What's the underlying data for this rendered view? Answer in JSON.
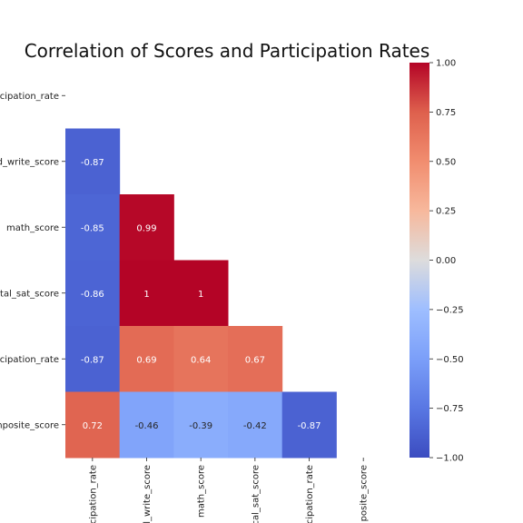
{
  "chart_data": {
    "type": "heatmap",
    "title": "Correlation of Scores and Participation Rates",
    "mask": "upper-triangle",
    "row_labels": [
      "cipation_rate",
      "d_write_score",
      "math_score",
      "tal_sat_score",
      "cipation_rate",
      "omposite_score"
    ],
    "col_labels": [
      "cipation_rate",
      "l_write_score",
      "math_score",
      "cal_sat_score",
      "cipation_rate",
      "posite_score"
    ],
    "values": [
      [
        null,
        null,
        null,
        null,
        null,
        null
      ],
      [
        -0.87,
        null,
        null,
        null,
        null,
        null
      ],
      [
        -0.85,
        0.99,
        null,
        null,
        null,
        null
      ],
      [
        -0.86,
        1,
        1,
        null,
        null,
        null
      ],
      [
        -0.87,
        0.69,
        0.64,
        0.67,
        null,
        null
      ],
      [
        0.72,
        -0.46,
        -0.39,
        -0.42,
        -0.87,
        null
      ]
    ],
    "value_labels": [
      [
        null,
        null,
        null,
        null,
        null,
        null
      ],
      [
        "-0.87",
        null,
        null,
        null,
        null,
        null
      ],
      [
        "-0.85",
        "0.99",
        null,
        null,
        null,
        null
      ],
      [
        "-0.86",
        "1",
        "1",
        null,
        null,
        null
      ],
      [
        "-0.87",
        "0.69",
        "0.64",
        "0.67",
        null,
        null
      ],
      [
        "0.72",
        "-0.46",
        "-0.39",
        "-0.42",
        "-0.87",
        null
      ]
    ],
    "colormap": "coolwarm",
    "vmin": -1,
    "vmax": 1,
    "colorbar_ticks": [
      "1.00",
      "0.75",
      "0.50",
      "0.25",
      "0.00",
      "−0.25",
      "−0.50",
      "−0.75",
      "−1.00"
    ],
    "colorbar_tick_values": [
      1,
      0.75,
      0.5,
      0.25,
      0,
      -0.25,
      -0.5,
      -0.75,
      -1
    ],
    "grid": false,
    "legend": "colorbar-right"
  }
}
